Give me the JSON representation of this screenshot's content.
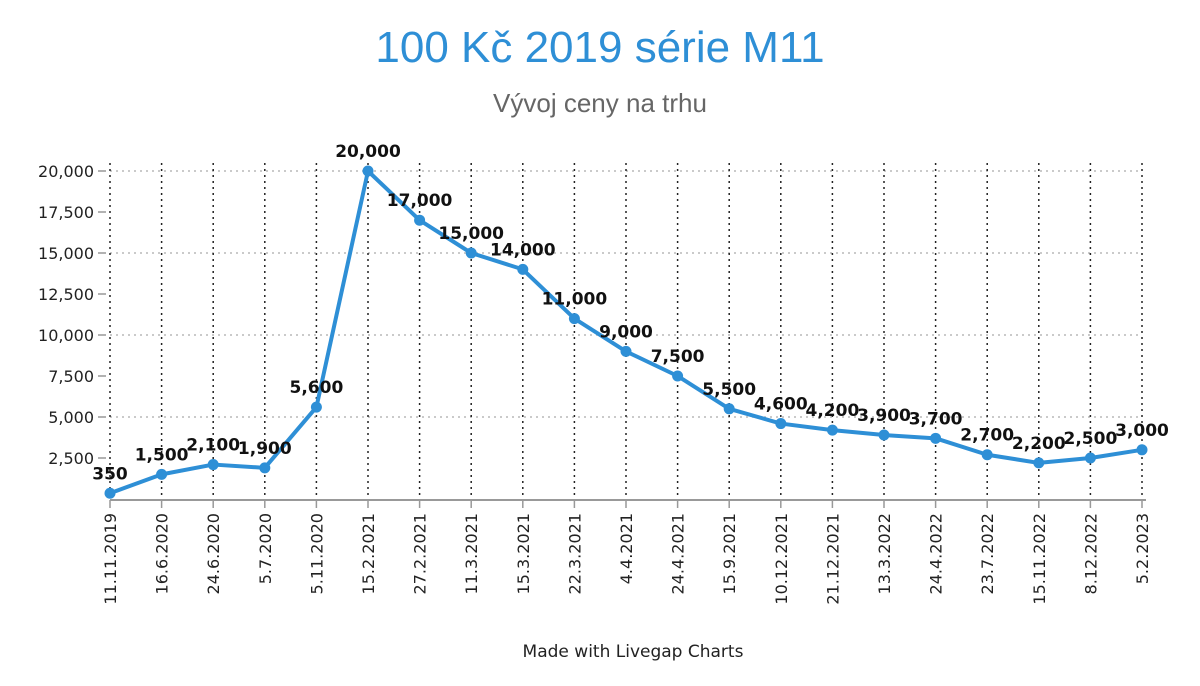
{
  "chart_data": {
    "type": "line",
    "title": "100 Kč 2019 série M11",
    "subtitle": "Vývoj ceny na trhu",
    "xlabel": "",
    "ylabel": "",
    "ylim": [
      0,
      20000
    ],
    "y_ticks": [
      2500,
      5000,
      7500,
      10000,
      12500,
      15000,
      17500,
      20000
    ],
    "y_tick_labels": [
      "2,500",
      "5,000",
      "7,500",
      "10,000",
      "12,500",
      "15,000",
      "17,500",
      "20,000"
    ],
    "grid": true,
    "legend": "none",
    "categories": [
      "11.11.2019",
      "16.6.2020",
      "24.6.2020",
      "5.7.2020",
      "5.11.2020",
      "15.2.2021",
      "27.2.2021",
      "11.3.2021",
      "15.3.2021",
      "22.3.2021",
      "4.4.2021",
      "24.4.2021",
      "15.9.2021",
      "10.12.2021",
      "21.12.2021",
      "13.3.2022",
      "24.4.2022",
      "23.7.2022",
      "15.11.2022",
      "8.12.2022",
      "5.2.2023"
    ],
    "series": [
      {
        "values": [
          350,
          1500,
          2100,
          1900,
          5600,
          20000,
          17000,
          15000,
          14000,
          11000,
          9000,
          7500,
          5500,
          4600,
          4200,
          3900,
          3700,
          2700,
          2200,
          2500,
          3000
        ],
        "labels": [
          "350",
          "1,500",
          "2,100",
          "1,900",
          "5,600",
          "20,000",
          "17,000",
          "15,000",
          "14,000",
          "11,000",
          "9,000",
          "7,500",
          "5,500",
          "4,600",
          "4,200",
          "3,900",
          "3,700",
          "2,700",
          "2,200",
          "2,500",
          "3,000"
        ]
      }
    ],
    "colors": {
      "line": "#2e8fd6",
      "title": "#2e8fd6"
    }
  },
  "footer": {
    "credit": "Made with Livegap Charts"
  }
}
